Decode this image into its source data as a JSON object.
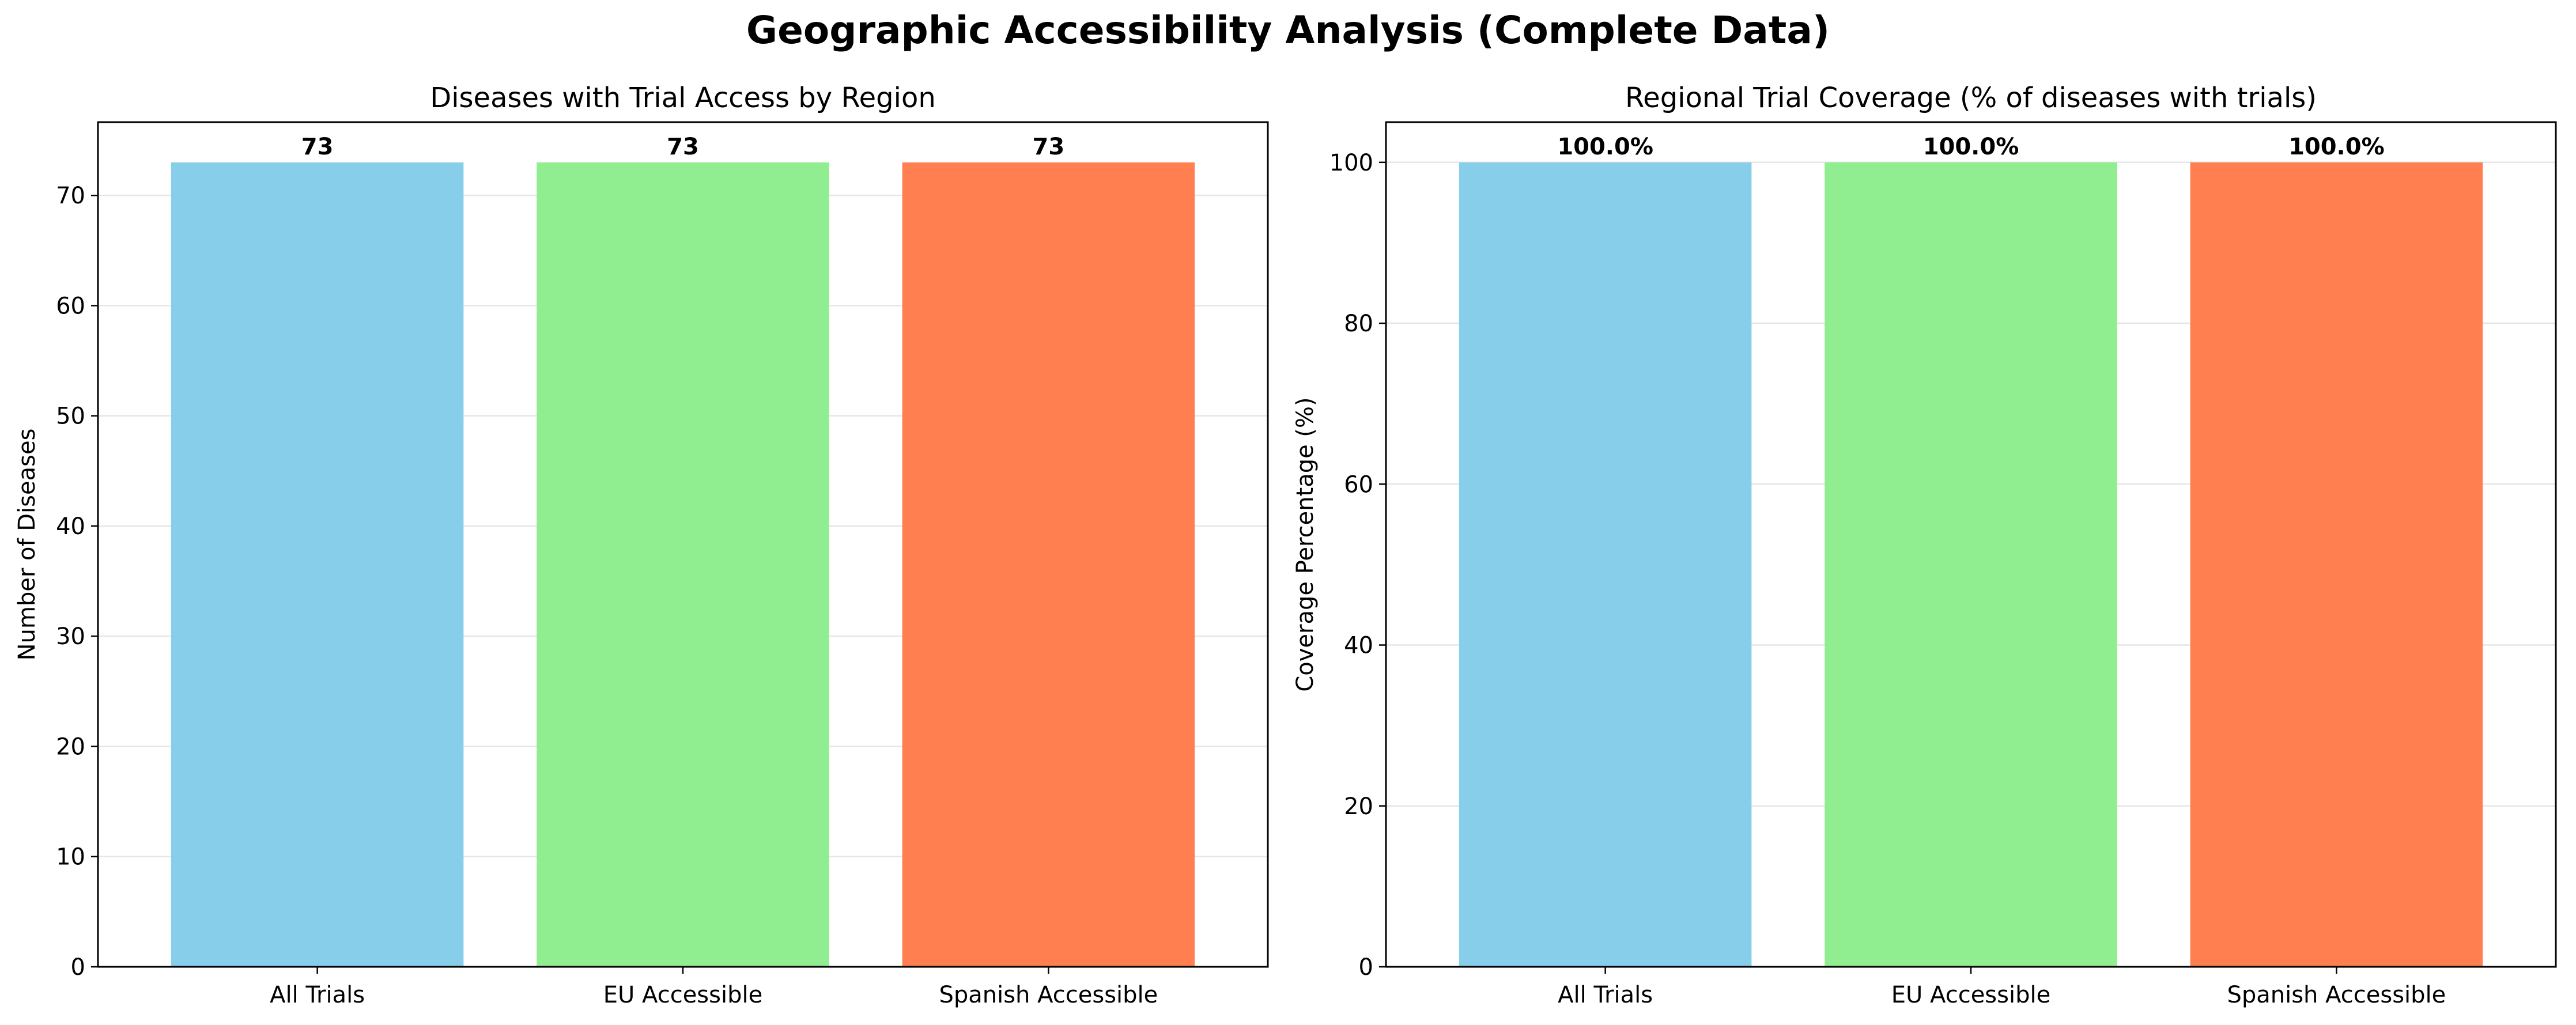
{
  "suptitle": "Geographic Accessibility Analysis (Complete Data)",
  "chart_data": [
    {
      "type": "bar",
      "title": "Diseases with Trial Access by Region",
      "xlabel": "",
      "ylabel": "Number of Diseases",
      "categories": [
        "All Trials",
        "EU Accessible",
        "Spanish Accessible"
      ],
      "values": [
        73,
        73,
        73
      ],
      "value_labels": [
        "73",
        "73",
        "73"
      ],
      "ylim": [
        0,
        76.65
      ],
      "yticks": [
        0,
        10,
        20,
        30,
        40,
        50,
        60,
        70
      ],
      "grid": "y",
      "legend": "none"
    },
    {
      "type": "bar",
      "title": "Regional Trial Coverage (% of diseases with trials)",
      "xlabel": "",
      "ylabel": "Coverage Percentage (%)",
      "categories": [
        "All Trials",
        "EU Accessible",
        "Spanish Accessible"
      ],
      "values": [
        100.0,
        100.0,
        100.0
      ],
      "value_labels": [
        "100.0%",
        "100.0%",
        "100.0%"
      ],
      "ylim": [
        0,
        105
      ],
      "yticks": [
        0,
        20,
        40,
        60,
        80,
        100
      ],
      "grid": "y",
      "legend": "none"
    }
  ],
  "colors": {
    "bars": [
      "#87CEEB",
      "#90EE90",
      "#FF7F50"
    ],
    "grid": "#e6e6e6",
    "axis": "#000000"
  }
}
